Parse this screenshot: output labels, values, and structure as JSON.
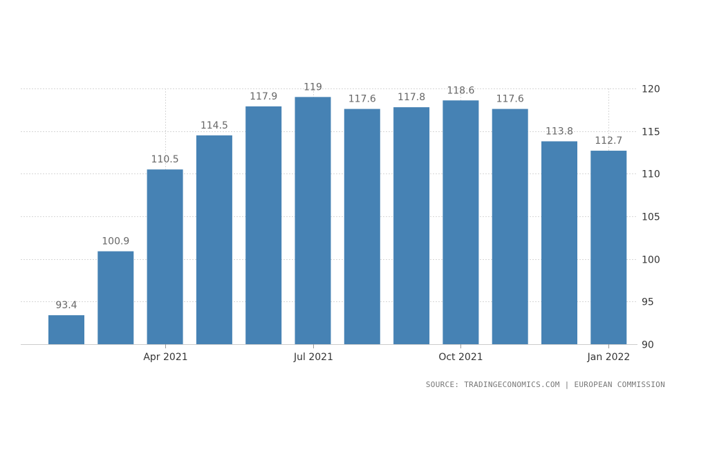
{
  "chart_data": {
    "type": "bar",
    "title": "",
    "xlabel": "",
    "ylabel": "",
    "x": [
      "Feb 2021",
      "Mar 2021",
      "Apr 2021",
      "May 2021",
      "Jun 2021",
      "Jul 2021",
      "Aug 2021",
      "Sep 2021",
      "Oct 2021",
      "Nov 2021",
      "Dec 2021",
      "Jan 2022"
    ],
    "values": [
      93.4,
      100.9,
      110.5,
      114.5,
      117.9,
      119,
      117.6,
      117.8,
      118.6,
      117.6,
      113.8,
      112.7
    ],
    "value_labels": [
      "93.4",
      "100.9",
      "110.5",
      "114.5",
      "117.9",
      "119",
      "117.6",
      "117.8",
      "118.6",
      "117.6",
      "113.8",
      "112.7"
    ],
    "x_tick_labels": [
      {
        "category": "Apr 2021",
        "label": "Apr 2021"
      },
      {
        "category": "Jul 2021",
        "label": "Jul 2021"
      },
      {
        "category": "Oct 2021",
        "label": "Oct 2021"
      },
      {
        "category": "Jan 2022",
        "label": "Jan 2022"
      }
    ],
    "y_ticks": [
      90,
      95,
      100,
      105,
      110,
      115,
      120
    ],
    "ylim": [
      90,
      120
    ],
    "y_axis_side": "right",
    "grid": true,
    "bar_color": "#4682b4"
  },
  "source_text": "SOURCE: TRADINGECONOMICS.COM | EUROPEAN COMMISSION"
}
